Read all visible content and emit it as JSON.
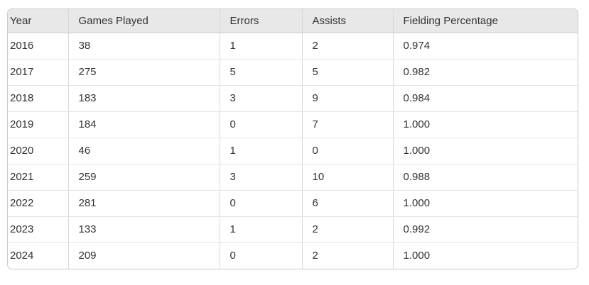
{
  "chart_data": {
    "type": "table",
    "columns": [
      {
        "key": "year",
        "label": "Year"
      },
      {
        "key": "games-played",
        "label": "Games Played"
      },
      {
        "key": "errors",
        "label": "Errors"
      },
      {
        "key": "assists",
        "label": "Assists"
      },
      {
        "key": "fielding-percentage",
        "label": "Fielding Percentage"
      }
    ],
    "rows": [
      [
        "2016",
        "38",
        "1",
        "2",
        "0.974"
      ],
      [
        "2017",
        "275",
        "5",
        "5",
        "0.982"
      ],
      [
        "2018",
        "183",
        "3",
        "9",
        "0.984"
      ],
      [
        "2019",
        "184",
        "0",
        "7",
        "1.000"
      ],
      [
        "2020",
        "46",
        "1",
        "0",
        "1.000"
      ],
      [
        "2021",
        "259",
        "3",
        "10",
        "0.988"
      ],
      [
        "2022",
        "281",
        "0",
        "6",
        "1.000"
      ],
      [
        "2023",
        "133",
        "1",
        "2",
        "0.992"
      ],
      [
        "2024",
        "209",
        "0",
        "2",
        "1.000"
      ]
    ]
  },
  "colors": {
    "page_bg": "#ffffff",
    "header_bg": "#e8e8e8",
    "outer_border": "#c9c9c9",
    "header_divider": "#cfcfcf",
    "column_divider": "#d9d9d9",
    "row_divider": "#e4e4e4",
    "text": "#323232"
  }
}
